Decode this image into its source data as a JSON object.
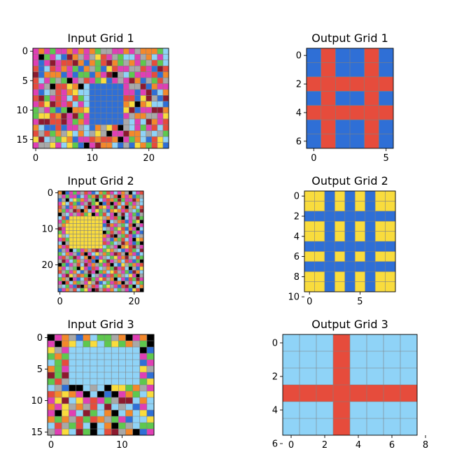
{
  "palette": {
    "K": "#000000",
    "B": "#2f6fd6",
    "R": "#e64c3c",
    "G": "#5ec84e",
    "Y": "#f9dc3d",
    "S": "#a8a8a8",
    "M": "#e03fb4",
    "O": "#f3882b",
    "L": "#8fd3f7",
    "D": "#8c1a2e"
  },
  "grid_line_color": "#808080",
  "panels": [
    {
      "title": "Input Grid 1",
      "x_ticks": [
        "0",
        "10",
        "20"
      ],
      "x_tick_values": [
        0,
        10,
        20
      ],
      "y_ticks": [
        "0",
        "5",
        "10",
        "15"
      ],
      "y_tick_values": [
        0,
        5,
        10,
        15
      ],
      "rows": [
        "MOMGMMOMOMOGSSMMOMSOOOGL",
        "MKGMLBDOSMSYRMSGLLMSOLML",
        "MBMDMRRDOBOGRDOGSOMGSRGL",
        "RBLRMOMGBOSGBYRMMSSRMBDR",
        "DBOOOBMBGGBOMDKSLGMMMRBO",
        "RLMGSGKMSRMGYBMSMDOBSGRS",
        "RMSKRRYOKLBBBBBBMSSDBOMM",
        "MBLSRMOYLLBBBBBBMMBMDBLO",
        "RDGMRMLRGLBBBBBBRRBYDSBD",
        "MRYDRMRLMLBBBBBBOYKOYLLB",
        "GSMGBGKOOYBBBBBBYDBMMDDO",
        "GYYRODMDGMBBBBBBMSOOSSMY",
        "MDDRRDMGOMBBBBBBSLMLDOMR",
        "OLBBRBMMSLBOSYRKSLMGMRLR",
        "RSRGOSYLOLSYSKMMDOOLSLSG",
        "YDLSGYOBMMRORROKMGOLBRYL",
        "MSSYMLYGBKMDOOLBSBYOGRYB"
      ]
    },
    {
      "title": "Output Grid 1",
      "x_ticks": [
        "0",
        "5"
      ],
      "x_tick_values": [
        0,
        5
      ],
      "y_ticks": [
        "0",
        "2",
        "4",
        "6"
      ],
      "y_tick_values": [
        0,
        2,
        4,
        6
      ],
      "rows": [
        "BRBBRB",
        "BRBBRB",
        "RRRRRR",
        "BRBBRB",
        "RRRRRR",
        "BRBBRB",
        "BRBBRB"
      ]
    },
    {
      "title": "Input Grid 2",
      "x_ticks": [
        "0",
        "20"
      ],
      "x_tick_values": [
        0,
        20
      ],
      "y_ticks": [
        "0",
        "10",
        "20"
      ],
      "y_tick_values": [
        0,
        10,
        20
      ],
      "rows": [
        "OKBMGMSRMBLOGRMLMOSKLMR",
        "SMGMMBLMGODGRYSRKOMOBGS",
        "BSKLYGOMSGKLMROGDGMMDOL",
        "MYLRGBMSDGYKBRKMOLRGMSL",
        "RSBMOSLRKMDOYMGDLRKSOLR",
        "OGMSDRKOLMYGSBOYOMRSLGD",
        "KSLMSMRGYKMGRLMKSDLMGBS",
        "LRBYYYYYYYYYSOMRGKLMSDG",
        "MGOYYYYYYYYYMKLSORBMGYK",
        "SOYYYYYYYYYYBDOMSGLRKSM",
        "DMYYYYYYYYYYLSMGYRBOMKL",
        "GMYYYYYYYYYYKGRSMOLDGMB",
        "YSLYYYYYYYYYOMDKSGRMBLS",
        "MRGYYYYYYYYYMSBOGRLMKYO",
        "LKSYYYYYYYYYRMGLSDOMBGK",
        "OMRYYYYYYYYYLGSMKOYRDSM",
        "BSMKLGMOSRDMGYOSLBMRGLD",
        "GLOMSBRKMLYSOGMDRSKOMBL",
        "MRSGDMLOKRBMSLGYMODSLRG",
        "SDMLGOSMRBKYGDMSOLRMBGK",
        "KGBMSRLDMOSGMRKLBYSGOMR",
        "OMLSGKYMBRMLSOGDMRLKSBY",
        "RSGMOLBSDMKGOLYRSMGBDOL",
        "LMDYSROGKLSMBMRGOSLYMKS",
        "GOSKMBLRDGMYRSOKLMBRGDM",
        "MKRLOGSMYSDBLGMROKSMLOG",
        "SLGMBDKOSRMLGYSMBRDGKLO",
        "BMOSRLGYMKDSRMOLGSMBYRK"
      ]
    },
    {
      "title": "Output Grid 2",
      "x_ticks": [
        "0",
        "5"
      ],
      "x_tick_values": [
        0,
        5
      ],
      "y_ticks": [
        "0",
        "2",
        "4",
        "6",
        "8",
        "10"
      ],
      "y_tick_values": [
        0,
        2,
        4,
        6,
        8,
        10
      ],
      "rows": [
        "YYBYBYBYY",
        "YYBYBYBYY",
        "BBBBBBBBB",
        "YYBYBYBYY",
        "YYBYBYBYY",
        "BBBBBBBBB",
        "YYBYBYBYY",
        "BBBBBBBBB",
        "YYBYBYBYY",
        "YYBYBYBYY"
      ]
    },
    {
      "title": "Input Grid 3",
      "x_ticks": [
        "0",
        "10"
      ],
      "x_tick_values": [
        0,
        10
      ],
      "y_ticks": [
        "0",
        "5",
        "10",
        "15"
      ],
      "y_tick_values": [
        0,
        5,
        10,
        15
      ],
      "rows": [
        "KMOSBOLGGSOKMOK",
        "MKOYLGYLGYGOSGK",
        "YSMLLLLLLLLLLKB",
        "GOGLLLLLLLLLLMG",
        "LGRLLLLLLLLLLBM",
        "OGMLLLLLLLLLLYS",
        "DGDLLLLLLLLLLMB",
        "GRSLLLLLLLLLLGY",
        "LSBKKLSLKYYGOSM",
        "ROYOMKLKBKMOGLY",
        "MYDLYMRMGSDDLOL",
        "OMYSOSRLDLSLBML",
        "MKYMLDGLOKLOLYB",
        "OGOSRGROSGMBLLY",
        "LRSGRLKLOKGSLGG",
        "SMYLDGKLRDSOKBM"
      ]
    },
    {
      "title": "Output Grid 3",
      "x_ticks": [
        "0",
        "2",
        "4",
        "6",
        "8"
      ],
      "x_tick_values": [
        0,
        2,
        4,
        6,
        8
      ],
      "y_ticks": [
        "0",
        "2",
        "4",
        "6"
      ],
      "y_tick_values": [
        0,
        2,
        4,
        6
      ],
      "rows": [
        "LLLRLLLL",
        "LLLRLLLL",
        "LLLRLLLL",
        "RRRRRRRR",
        "LLLRLLLL",
        "LLLRLLLL"
      ]
    }
  ]
}
